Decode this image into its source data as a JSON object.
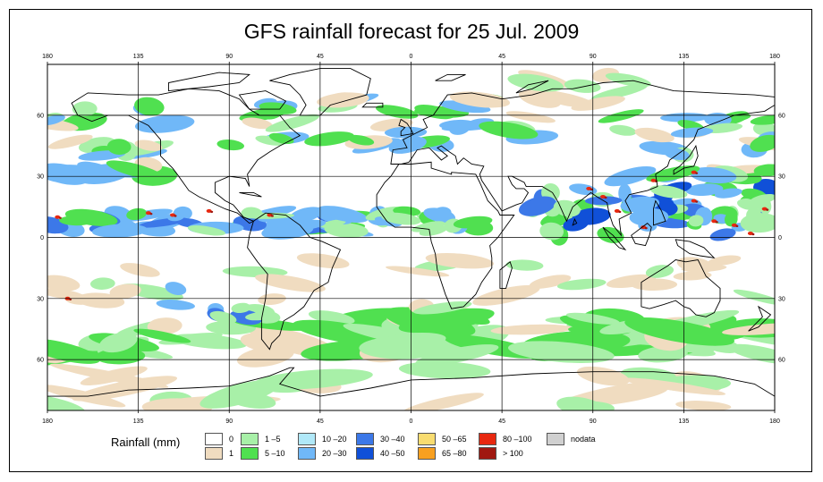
{
  "title": "GFS rainfall forecast for 25 Jul. 2009",
  "lon_ticks": [
    "180",
    "135",
    "90",
    "45",
    "0",
    "45",
    "90",
    "135",
    "180"
  ],
  "lat_ticks": [
    "60",
    "30",
    "0",
    "30",
    "60"
  ],
  "legend": {
    "title": "Rainfall (mm)",
    "items": [
      {
        "label": "0",
        "color": "#ffffff"
      },
      {
        "label": "1",
        "color": "#f0dcc0"
      },
      {
        "label": "1 –5",
        "color": "#a8f0a8"
      },
      {
        "label": "5 –10",
        "color": "#50e050"
      },
      {
        "label": "10 –20",
        "color": "#b0e8f8"
      },
      {
        "label": "20 –30",
        "color": "#70b8f8"
      },
      {
        "label": "30 –40",
        "color": "#3c78e8"
      },
      {
        "label": "40 –50",
        "color": "#1050d8"
      },
      {
        "label": "50 –65",
        "color": "#f8dc70"
      },
      {
        "label": "65 –80",
        "color": "#f8a020"
      },
      {
        "label": "80 –100",
        "color": "#e82810"
      },
      {
        "label": "> 100",
        "color": "#a01810"
      },
      {
        "label": "nodata",
        "color": "#d0d0d0"
      }
    ]
  },
  "colors": {
    "ocean": "#ffffff",
    "coast": "#000000",
    "grid": "#000000"
  }
}
